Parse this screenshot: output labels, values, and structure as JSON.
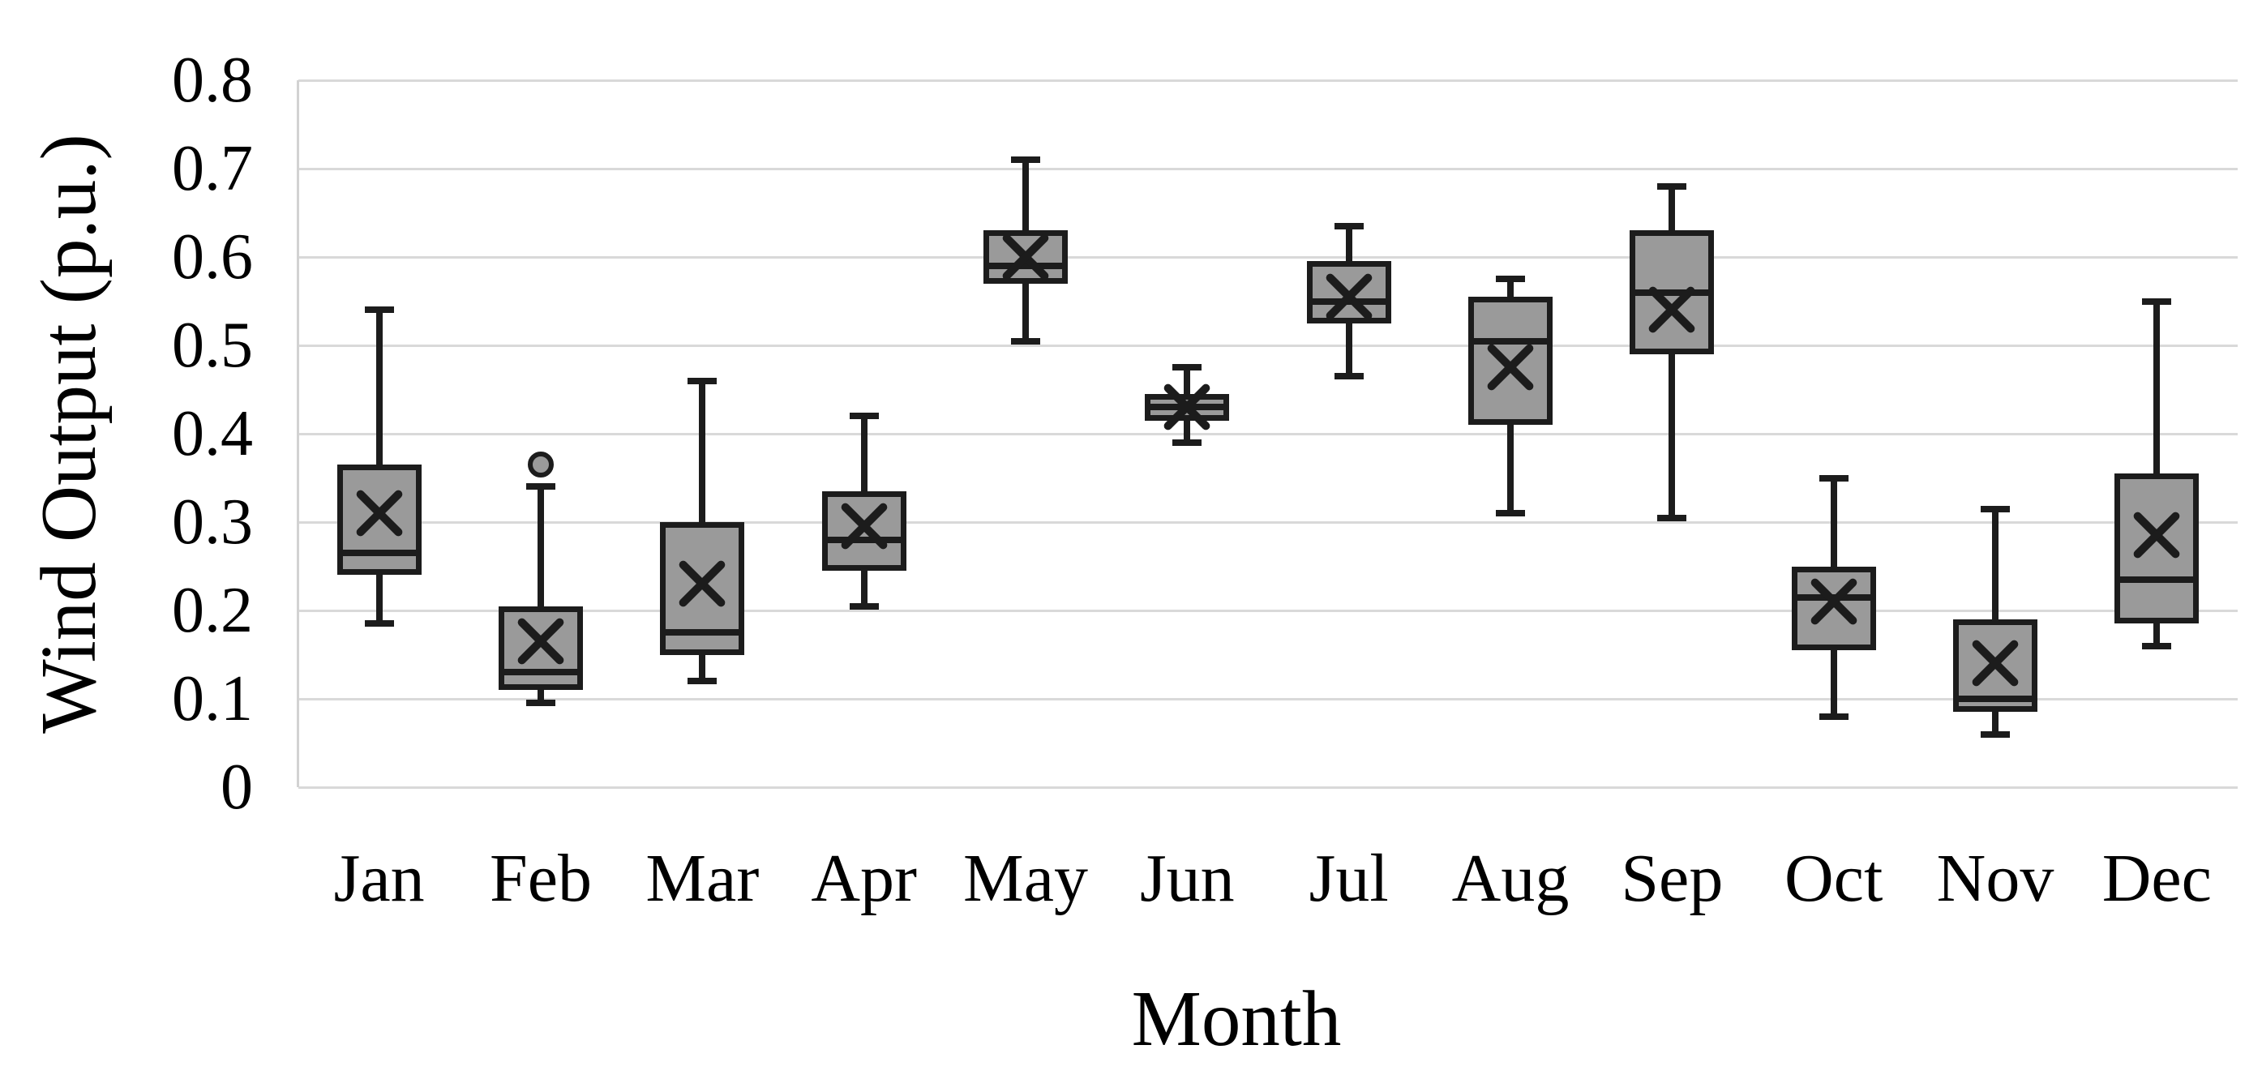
{
  "colors": {
    "background": "#ffffff",
    "text": "#000000",
    "gridline": "#d9d9d9",
    "axis_line": "#d2d2d2",
    "box_fill": "#9a9a9a",
    "box_border": "#1c1c1c",
    "line": "#1c1c1c"
  },
  "chart_data": {
    "type": "boxplot",
    "title": "",
    "xlabel": "Month",
    "ylabel": "Wind Output (p.u.)",
    "ylim": [
      0,
      0.8
    ],
    "grid": true,
    "legend": "none",
    "ytick_labels": [
      "0.8",
      "0.7",
      "0.6",
      "0.5",
      "0.4",
      "0.3",
      "0.2",
      "0.1",
      "0"
    ],
    "categories": [
      "Jan",
      "Feb",
      "Mar",
      "Apr",
      "May",
      "Jun",
      "Jul",
      "Aug",
      "Sep",
      "Oct",
      "Nov",
      "Dec"
    ],
    "series": [
      {
        "month": "Jan",
        "whisker_low": 0.185,
        "q1": 0.24,
        "median": 0.265,
        "q3": 0.365,
        "whisker_high": 0.54,
        "mean": 0.31,
        "outliers": []
      },
      {
        "month": "Feb",
        "whisker_low": 0.095,
        "q1": 0.11,
        "median": 0.13,
        "q3": 0.205,
        "whisker_high": 0.34,
        "mean": 0.165,
        "outliers": [
          0.365
        ]
      },
      {
        "month": "Mar",
        "whisker_low": 0.12,
        "q1": 0.15,
        "median": 0.175,
        "q3": 0.3,
        "whisker_high": 0.46,
        "mean": 0.23,
        "outliers": []
      },
      {
        "month": "Apr",
        "whisker_low": 0.205,
        "q1": 0.245,
        "median": 0.28,
        "q3": 0.335,
        "whisker_high": 0.42,
        "mean": 0.295,
        "outliers": []
      },
      {
        "month": "May",
        "whisker_low": 0.505,
        "q1": 0.57,
        "median": 0.59,
        "q3": 0.63,
        "whisker_high": 0.71,
        "mean": 0.6,
        "outliers": []
      },
      {
        "month": "Jun",
        "whisker_low": 0.39,
        "q1": 0.415,
        "median": 0.43,
        "q3": 0.445,
        "whisker_high": 0.475,
        "mean": 0.43,
        "outliers": []
      },
      {
        "month": "Jul",
        "whisker_low": 0.465,
        "q1": 0.525,
        "median": 0.55,
        "q3": 0.595,
        "whisker_high": 0.635,
        "mean": 0.555,
        "outliers": []
      },
      {
        "month": "Aug",
        "whisker_low": 0.31,
        "q1": 0.41,
        "median": 0.505,
        "q3": 0.555,
        "whisker_high": 0.575,
        "mean": 0.475,
        "outliers": []
      },
      {
        "month": "Sep",
        "whisker_low": 0.305,
        "q1": 0.49,
        "median": 0.56,
        "q3": 0.63,
        "whisker_high": 0.68,
        "mean": 0.54,
        "outliers": []
      },
      {
        "month": "Oct",
        "whisker_low": 0.08,
        "q1": 0.155,
        "median": 0.215,
        "q3": 0.25,
        "whisker_high": 0.35,
        "mean": 0.21,
        "outliers": []
      },
      {
        "month": "Nov",
        "whisker_low": 0.06,
        "q1": 0.085,
        "median": 0.1,
        "q3": 0.19,
        "whisker_high": 0.315,
        "mean": 0.14,
        "outliers": []
      },
      {
        "month": "Dec",
        "whisker_low": 0.16,
        "q1": 0.185,
        "median": 0.235,
        "q3": 0.355,
        "whisker_high": 0.55,
        "mean": 0.285,
        "outliers": []
      }
    ]
  }
}
